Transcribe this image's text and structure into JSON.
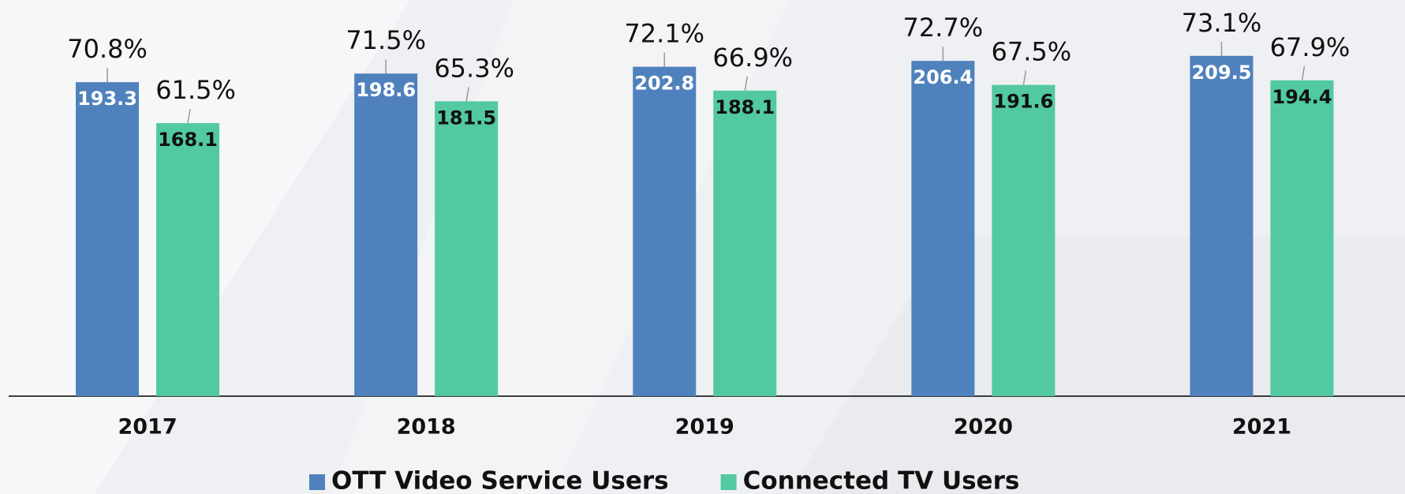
{
  "chart_data": {
    "type": "bar",
    "categories": [
      "2017",
      "2018",
      "2019",
      "2020",
      "2021"
    ],
    "series": [
      {
        "name": "OTT Video Service Users",
        "color": "#4f81bd",
        "values": [
          193.3,
          198.6,
          202.8,
          206.4,
          209.5
        ],
        "shares": [
          70.8,
          71.5,
          72.1,
          72.7,
          73.1
        ],
        "share_labels": [
          "70.8%",
          "71.5%",
          "72.1%",
          "72.7%",
          "73.1%"
        ]
      },
      {
        "name": "Connected TV Users",
        "color": "#52c9a0",
        "values": [
          168.1,
          181.5,
          188.1,
          191.6,
          194.4
        ],
        "shares": [
          61.5,
          65.3,
          66.9,
          67.5,
          67.9
        ],
        "share_labels": [
          "61.5%",
          "65.3%",
          "66.9%",
          "67.5%",
          "67.9%"
        ]
      }
    ],
    "ylim": [
      0,
      240
    ],
    "legend": "bottom"
  }
}
